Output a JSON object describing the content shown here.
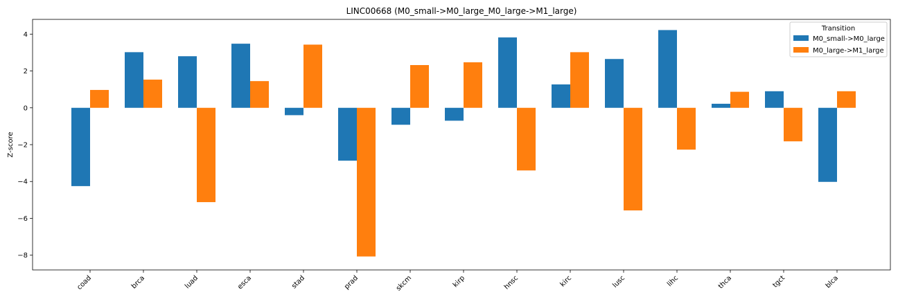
{
  "chart_data": {
    "type": "bar",
    "title": "LINC00668 (M0_small->M0_large_M0_large->M1_large)",
    "xlabel": "",
    "ylabel": "Z-score",
    "categories": [
      "coad",
      "brca",
      "luad",
      "esca",
      "stad",
      "prad",
      "skcm",
      "kirp",
      "hnsc",
      "kirc",
      "lusc",
      "lihc",
      "thca",
      "tgct",
      "blca"
    ],
    "series": [
      {
        "name": "M0_small->M0_large",
        "color": "#1f77b4",
        "values": [
          -4.25,
          3.02,
          2.8,
          3.48,
          -0.4,
          -2.87,
          -0.92,
          -0.7,
          3.82,
          1.27,
          2.65,
          4.22,
          0.22,
          0.9,
          -4.02
        ]
      },
      {
        "name": "M0_large->M1_large",
        "color": "#ff7f0e",
        "values": [
          0.97,
          1.53,
          -5.12,
          1.45,
          3.43,
          -8.07,
          2.32,
          2.47,
          -3.4,
          3.02,
          -5.57,
          -2.27,
          0.87,
          -1.82,
          0.9
        ]
      }
    ],
    "ylim": [
      -8.8,
      4.8
    ],
    "yticks": [
      4,
      2,
      0,
      -2,
      -4,
      -6,
      -8
    ],
    "ytick_labels": [
      "4",
      "2",
      "0",
      "−2",
      "−4",
      "−6",
      "−8"
    ],
    "legend": {
      "title": "Transition",
      "placement": "top-right"
    },
    "grid": false
  }
}
